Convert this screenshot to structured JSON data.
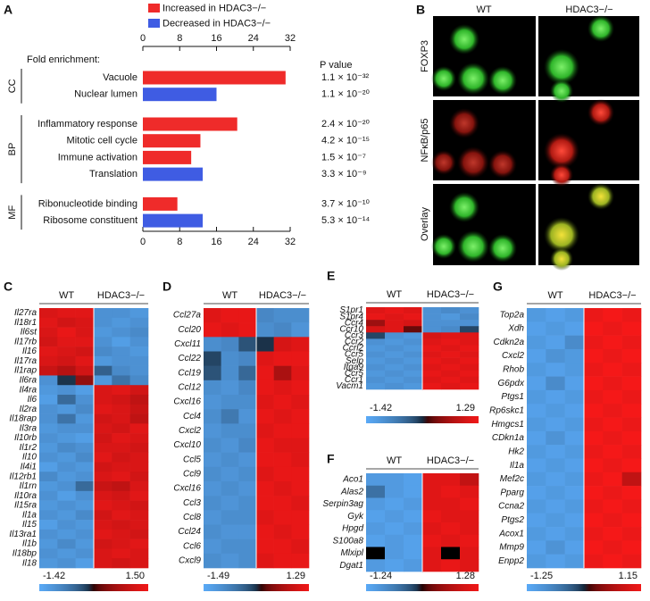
{
  "chart_data": [
    {
      "type": "bar",
      "panel": "A",
      "series": [
        {
          "name": "Increased in HDAC3−/−",
          "color": "#ef2b2a",
          "values": [
            31,
            null,
            20.5,
            12.5,
            10.5,
            null,
            7.5,
            null
          ]
        },
        {
          "name": "Decreased in HDAC3−/−",
          "color": "#3f5ce3",
          "values": [
            null,
            16,
            null,
            null,
            null,
            13,
            null,
            13
          ]
        }
      ],
      "groups": [
        {
          "label": "CC",
          "categories": [
            "Vacuole",
            "Nuclear lumen"
          ],
          "p_values": [
            "1.1 × 10⁻³²",
            "1.1 × 10⁻²⁰"
          ]
        },
        {
          "label": "BP",
          "categories": [
            "Inflammatory response",
            "Mitotic cell cycle",
            "Immune activation",
            "Translation"
          ],
          "p_values": [
            "2.4 × 10⁻²⁰",
            "4.2 × 10⁻¹⁵",
            "1.5 × 10⁻⁷",
            "3.3 × 10⁻⁹"
          ]
        },
        {
          "label": "MF",
          "categories": [
            "Ribonucleotide binding",
            "Ribosome constituent"
          ],
          "p_values": [
            "3.7 × 10⁻¹⁰",
            "5.3 × 10⁻¹⁴"
          ]
        }
      ],
      "xlabel": "Fold enrichment:",
      "p_value_label": "P value",
      "xlim": [
        0,
        32
      ],
      "xticks": [
        0,
        8,
        16,
        24,
        32
      ]
    },
    {
      "type": "heatmap",
      "panel": "C",
      "columns": [
        "WT",
        "HDAC3−/−"
      ],
      "rows": [
        "Il27ra",
        "Il18r1",
        "Il6st",
        "Il17rb",
        "Il16",
        "Il17ra",
        "Il1rap",
        "Il6ra",
        "Il4ra",
        "Il6",
        "Il2ra",
        "Il18rap",
        "Il3ra",
        "Il10rb",
        "Il1r2",
        "Il10",
        "Il4i1",
        "Il12rb1",
        "Il1rn",
        "Il10ra",
        "Il15ra",
        "Il1a",
        "Il15",
        "Il13ra1",
        "Il1b",
        "Il18bp",
        "Il18"
      ],
      "values": [
        [
          1.2,
          1.3,
          1.3,
          -1.0,
          -1.0,
          -1.1
        ],
        [
          1.3,
          1.1,
          1.2,
          -1.0,
          -1.1,
          -1.0
        ],
        [
          1.2,
          1.4,
          1.2,
          -1.1,
          -1.0,
          -0.9
        ],
        [
          1.1,
          1.3,
          1.3,
          -1.0,
          -1.2,
          -1.0
        ],
        [
          1.3,
          1.2,
          1.1,
          -0.9,
          -1.0,
          -1.1
        ],
        [
          1.2,
          1.1,
          1.3,
          -1.1,
          -1.0,
          -1.0
        ],
        [
          1.0,
          0.8,
          1.1,
          -0.4,
          -0.9,
          -1.0
        ],
        [
          -1.0,
          -0.1,
          0.5,
          -1.1,
          -0.6,
          -0.9
        ],
        [
          -1.1,
          -1.0,
          -1.2,
          1.2,
          1.3,
          1.1
        ],
        [
          -1.2,
          -0.5,
          -1.0,
          1.2,
          1.1,
          0.9
        ],
        [
          -1.0,
          -1.1,
          -0.9,
          1.3,
          1.2,
          1.0
        ],
        [
          -1.0,
          -0.6,
          -1.1,
          1.1,
          1.2,
          0.9
        ],
        [
          -1.1,
          -1.0,
          -1.0,
          1.2,
          1.1,
          1.3
        ],
        [
          -1.0,
          -1.1,
          -1.2,
          1.1,
          1.3,
          1.2
        ],
        [
          -1.1,
          -0.9,
          -1.0,
          1.2,
          1.2,
          1.1
        ],
        [
          -1.0,
          -1.1,
          -0.9,
          1.3,
          1.1,
          1.2
        ],
        [
          -1.2,
          -1.0,
          -1.1,
          1.1,
          1.2,
          1.2
        ],
        [
          -0.9,
          -1.1,
          -1.0,
          1.2,
          1.3,
          1.1
        ],
        [
          -1.1,
          -1.0,
          -0.5,
          1.0,
          0.9,
          1.2
        ],
        [
          -1.0,
          -1.2,
          -1.0,
          1.2,
          1.1,
          1.3
        ],
        [
          -1.1,
          -1.0,
          -1.1,
          1.3,
          1.2,
          1.1
        ],
        [
          -1.0,
          -1.1,
          -0.9,
          1.1,
          1.3,
          1.2
        ],
        [
          -1.2,
          -1.0,
          -1.1,
          1.2,
          1.1,
          1.2
        ],
        [
          -1.0,
          -1.1,
          -1.0,
          1.3,
          1.2,
          1.1
        ],
        [
          -1.1,
          -0.9,
          -1.1,
          1.1,
          1.2,
          1.3
        ],
        [
          -1.0,
          -1.1,
          -1.0,
          1.2,
          1.3,
          1.2
        ],
        [
          -1.1,
          -1.0,
          -1.2,
          1.2,
          1.1,
          1.2
        ]
      ],
      "zlim": [
        -1.42,
        1.5
      ],
      "zticks": [
        -1.42,
        {
          "value": 1.5,
          "label": "1.50"
        }
      ],
      "colors": [
        "#5aaaf7",
        "#000000",
        "#f01818"
      ]
    },
    {
      "type": "heatmap",
      "panel": "D",
      "columns": [
        "WT",
        "HDAC3−/−"
      ],
      "rows": [
        "Ccl27a",
        "Ccl20",
        "Cxcl11",
        "Ccl22",
        "Ccl19",
        "Ccl12",
        "Cxcl16",
        "Ccl4",
        "Cxcl2",
        "Cxcl10",
        "Ccl5",
        "Ccl9",
        "Cxcl16",
        "Ccl3",
        "Ccl8",
        "Ccl24",
        "Ccl6",
        "Cxcl9"
      ],
      "values": [
        [
          1.1,
          1.2,
          1.2,
          -0.9,
          -1.0,
          -1.0
        ],
        [
          1.2,
          1.1,
          1.2,
          -1.0,
          -0.9,
          -1.1
        ],
        [
          -1.0,
          -0.9,
          -0.3,
          -0.1,
          1.0,
          1.1
        ],
        [
          -0.2,
          -1.0,
          -0.9,
          1.1,
          1.2,
          1.2
        ],
        [
          -0.3,
          -1.0,
          -0.5,
          1.2,
          0.6,
          1.1
        ],
        [
          -1.0,
          -1.1,
          -0.9,
          1.2,
          1.1,
          1.2
        ],
        [
          -1.1,
          -1.0,
          -1.0,
          1.1,
          1.2,
          1.1
        ],
        [
          -1.0,
          -0.7,
          -1.1,
          1.2,
          1.1,
          1.2
        ],
        [
          -1.1,
          -1.0,
          -1.0,
          1.1,
          1.2,
          1.2
        ],
        [
          -1.0,
          -1.1,
          -0.9,
          1.2,
          1.1,
          1.1
        ],
        [
          -1.1,
          -1.0,
          -1.1,
          1.2,
          1.2,
          1.1
        ],
        [
          -1.0,
          -1.1,
          -1.0,
          1.1,
          1.2,
          1.2
        ],
        [
          -1.1,
          -1.0,
          -1.1,
          1.2,
          1.1,
          1.2
        ],
        [
          -1.0,
          -1.1,
          -1.0,
          1.2,
          1.2,
          1.1
        ],
        [
          -1.1,
          -1.0,
          -1.0,
          1.1,
          1.2,
          1.2
        ],
        [
          -1.0,
          -1.1,
          -1.1,
          1.2,
          1.1,
          1.2
        ],
        [
          -1.1,
          -1.0,
          -1.0,
          1.2,
          1.2,
          1.1
        ],
        [
          -1.0,
          -1.1,
          -1.0,
          1.1,
          1.2,
          1.2
        ]
      ],
      "zlim": [
        -1.49,
        1.29
      ],
      "zticks": [
        -1.49,
        1.29
      ],
      "colors": [
        "#5aaaf7",
        "#000000",
        "#f01818"
      ]
    },
    {
      "type": "heatmap",
      "panel": "E",
      "columns": [
        "WT",
        "HDAC3−/−"
      ],
      "rows": [
        "S1pr1",
        "S1pr4",
        "Ccr4",
        "Ccr10",
        "Ccr3",
        "Ccr2",
        "Ccrl2",
        "Ccr5",
        "Selp",
        "Itga9",
        "Ccr5",
        "Ccr1",
        "Vacm1"
      ],
      "values": [
        [
          1.1,
          1.2,
          1.1,
          -1.0,
          -0.9,
          -1.0
        ],
        [
          1.2,
          1.1,
          1.2,
          -1.0,
          -1.1,
          -0.9
        ],
        [
          0.5,
          1.1,
          1.0,
          -1.0,
          -1.0,
          -1.0
        ],
        [
          1.0,
          1.1,
          0.2,
          -1.0,
          -0.9,
          -0.2
        ],
        [
          -0.2,
          -1.0,
          -1.1,
          1.0,
          1.1,
          1.1
        ],
        [
          -1.0,
          -1.1,
          -1.0,
          1.1,
          1.2,
          1.1
        ],
        [
          -1.1,
          -1.0,
          -1.1,
          1.2,
          1.1,
          1.2
        ],
        [
          -1.0,
          -1.1,
          -1.0,
          1.1,
          1.2,
          1.1
        ],
        [
          -1.1,
          -1.0,
          -1.1,
          1.2,
          1.1,
          1.2
        ],
        [
          -1.0,
          -1.1,
          -1.0,
          1.1,
          1.2,
          1.1
        ],
        [
          -1.1,
          -1.0,
          -1.1,
          1.2,
          1.1,
          1.2
        ],
        [
          -1.0,
          -1.1,
          -1.0,
          1.1,
          1.2,
          1.1
        ],
        [
          -1.1,
          -1.0,
          -1.1,
          1.2,
          1.1,
          1.2
        ]
      ],
      "zlim": [
        -1.42,
        1.29
      ],
      "zticks": [
        -1.42,
        1.29
      ],
      "colors": [
        "#5aaaf7",
        "#000000",
        "#f01818"
      ]
    },
    {
      "type": "heatmap",
      "panel": "F",
      "columns": [
        "WT",
        "HDAC3−/−"
      ],
      "rows": [
        "Aco1",
        "Alas2",
        "Serpin3ag",
        "Gyk",
        "Hpgd",
        "S100a8",
        "Mlxipl",
        "Dgat1"
      ],
      "values": [
        [
          -1.0,
          -1.0,
          -1.1,
          1.1,
          1.1,
          0.8
        ],
        [
          -0.5,
          -1.0,
          -1.1,
          1.1,
          1.2,
          1.1
        ],
        [
          -1.0,
          -1.1,
          -1.0,
          1.1,
          1.1,
          1.2
        ],
        [
          -1.1,
          -1.0,
          -1.1,
          1.2,
          1.1,
          1.1
        ],
        [
          -1.0,
          -1.1,
          -1.0,
          1.1,
          1.2,
          1.1
        ],
        [
          -1.1,
          -1.0,
          -1.1,
          1.2,
          1.1,
          1.2
        ],
        [
          0.0,
          -1.0,
          -1.1,
          1.1,
          0.0,
          1.1
        ],
        [
          -1.0,
          -1.1,
          -1.0,
          1.1,
          1.2,
          1.1
        ]
      ],
      "zlim": [
        -1.24,
        1.28
      ],
      "zticks": [
        -1.24,
        1.28
      ],
      "colors": [
        "#5aaaf7",
        "#000000",
        "#f01818"
      ]
    },
    {
      "type": "heatmap",
      "panel": "G",
      "columns": [
        "WT",
        "HDAC3−/−"
      ],
      "rows": [
        "Top2a",
        "Xdh",
        "Cdkn2a",
        "Cxcl2",
        "Rhob",
        "G6pdx",
        "Ptgs1",
        "Rp6skc1",
        "Hmgcs1",
        "CDkn1a",
        "Hk2",
        "Il1a",
        "Mef2c",
        "Pparg",
        "Ccna2",
        "Ptgs2",
        "Acox1",
        "Mmp9",
        "Enpp2"
      ],
      "values": [
        [
          -1.0,
          -1.1,
          -1.0,
          1.1,
          1.2,
          1.1
        ],
        [
          -1.1,
          -1.0,
          -1.1,
          1.2,
          1.1,
          1.2
        ],
        [
          -1.0,
          -1.1,
          -0.8,
          1.1,
          1.2,
          1.1
        ],
        [
          -1.1,
          -0.9,
          -1.0,
          1.2,
          1.1,
          1.2
        ],
        [
          -1.0,
          -1.1,
          -1.0,
          1.1,
          1.2,
          1.1
        ],
        [
          -1.1,
          -0.8,
          -1.1,
          1.2,
          1.1,
          1.2
        ],
        [
          -1.0,
          -1.1,
          -1.0,
          1.1,
          1.2,
          1.1
        ],
        [
          -1.1,
          -1.0,
          -1.1,
          1.2,
          1.1,
          1.2
        ],
        [
          -1.0,
          -1.1,
          -1.0,
          1.1,
          1.2,
          1.1
        ],
        [
          -1.1,
          -0.9,
          -1.1,
          1.2,
          1.1,
          1.2
        ],
        [
          -1.0,
          -1.1,
          -1.0,
          1.1,
          1.2,
          1.1
        ],
        [
          -1.1,
          -1.0,
          -1.1,
          1.2,
          1.1,
          1.2
        ],
        [
          -1.0,
          -1.1,
          -1.0,
          1.1,
          1.2,
          0.7
        ],
        [
          -1.1,
          -1.0,
          -1.1,
          1.2,
          1.1,
          1.2
        ],
        [
          -1.0,
          -1.1,
          -1.0,
          1.1,
          1.2,
          1.1
        ],
        [
          -1.1,
          -1.0,
          -1.1,
          1.2,
          1.1,
          1.2
        ],
        [
          -1.0,
          -1.1,
          -1.0,
          1.1,
          1.2,
          1.1
        ],
        [
          -1.1,
          -0.9,
          -1.1,
          1.2,
          1.1,
          1.2
        ],
        [
          -1.0,
          -1.1,
          -1.0,
          1.1,
          1.2,
          1.1
        ]
      ],
      "zlim": [
        -1.25,
        1.15
      ],
      "zticks": [
        -1.25,
        1.15
      ],
      "colors": [
        "#5aaaf7",
        "#000000",
        "#f01818"
      ]
    }
  ],
  "image_panel": {
    "panel": "B",
    "columns": [
      "WT",
      "HDAC3−/−"
    ],
    "rows": [
      "FOXP3",
      "NFκB/p65",
      "Overlay"
    ]
  }
}
